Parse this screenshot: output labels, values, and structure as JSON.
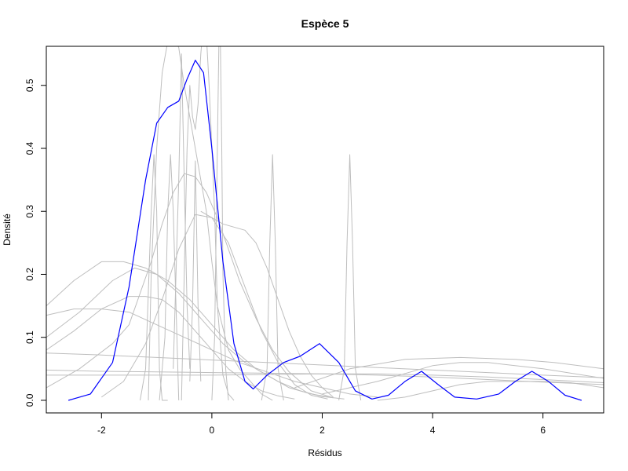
{
  "chart_data": {
    "type": "line",
    "title": "Espèce 5",
    "xlabel": "Résidus",
    "ylabel": "Densité",
    "xlim": [
      -3.0,
      7.1
    ],
    "ylim": [
      -0.02,
      0.562
    ],
    "x_ticks": [
      -2,
      0,
      2,
      4,
      6
    ],
    "x_tick_labels": [
      "-2",
      "0",
      "2",
      "4",
      "6"
    ],
    "y_ticks": [
      0.0,
      0.1,
      0.2,
      0.3,
      0.4,
      0.5
    ],
    "y_tick_labels": [
      "0.0",
      "0.1",
      "0.2",
      "0.3",
      "0.4",
      "0.5"
    ],
    "grid": false,
    "legend": "none",
    "colors": {
      "highlight": "#0000ff",
      "background_series": "#bebebe",
      "axis": "#000000"
    },
    "series": [
      {
        "role": "highlight",
        "x": [
          -2.6,
          -2.2,
          -1.8,
          -1.5,
          -1.2,
          -1.0,
          -0.8,
          -0.6,
          -0.45,
          -0.3,
          -0.15,
          0.0,
          0.2,
          0.4,
          0.6,
          0.75,
          1.0,
          1.3,
          1.6,
          1.95,
          2.3,
          2.6,
          2.9,
          3.2,
          3.5,
          3.8,
          4.1,
          4.4,
          4.8,
          5.2,
          5.5,
          5.8,
          6.1,
          6.4,
          6.7
        ],
        "y": [
          0.0,
          0.01,
          0.06,
          0.18,
          0.35,
          0.44,
          0.465,
          0.475,
          0.51,
          0.54,
          0.52,
          0.4,
          0.22,
          0.09,
          0.03,
          0.018,
          0.04,
          0.06,
          0.07,
          0.09,
          0.06,
          0.015,
          0.002,
          0.008,
          0.03,
          0.046,
          0.025,
          0.005,
          0.002,
          0.01,
          0.03,
          0.046,
          0.03,
          0.008,
          0.0
        ]
      },
      {
        "role": "background",
        "x": [
          -3.0,
          -2.5,
          -2.0,
          -1.6,
          -1.2,
          -0.8,
          -0.4,
          0.0,
          0.4,
          0.8,
          1.2,
          1.6,
          2.0,
          2.4
        ],
        "y": [
          0.15,
          0.19,
          0.22,
          0.22,
          0.21,
          0.19,
          0.16,
          0.12,
          0.08,
          0.05,
          0.03,
          0.015,
          0.006,
          0.002
        ]
      },
      {
        "role": "background",
        "x": [
          -3.0,
          -2.4,
          -1.8,
          -1.4,
          -1.0,
          -0.6,
          -0.2,
          0.2,
          0.6,
          1.0,
          1.4,
          1.8,
          2.2
        ],
        "y": [
          0.1,
          0.14,
          0.19,
          0.21,
          0.2,
          0.17,
          0.13,
          0.09,
          0.06,
          0.04,
          0.02,
          0.01,
          0.004
        ]
      },
      {
        "role": "background",
        "x": [
          -3.0,
          -2.5,
          -2.0,
          -1.5,
          -1.0,
          -0.5,
          0.0,
          0.5,
          1.0,
          1.5,
          2.0,
          2.5,
          3.0
        ],
        "y": [
          0.135,
          0.145,
          0.145,
          0.14,
          0.12,
          0.1,
          0.08,
          0.06,
          0.045,
          0.03,
          0.02,
          0.01,
          0.005
        ]
      },
      {
        "role": "background",
        "x": [
          -3.0,
          -2.5,
          -2.0,
          -1.5,
          -1.2,
          -0.9,
          -0.6,
          -0.3,
          0.0,
          0.3,
          0.6,
          0.9,
          1.2,
          1.5
        ],
        "y": [
          0.08,
          0.11,
          0.145,
          0.165,
          0.165,
          0.16,
          0.14,
          0.11,
          0.08,
          0.05,
          0.03,
          0.015,
          0.007,
          0.002
        ]
      },
      {
        "role": "background",
        "x": [
          -3.0,
          -2.4,
          -1.8,
          -1.5,
          -1.3,
          -1.1,
          -0.9,
          -0.7,
          -0.5,
          -0.3,
          -0.1,
          0.1,
          0.3,
          0.5,
          0.8,
          1.1,
          1.4,
          1.8,
          2.2
        ],
        "y": [
          0.02,
          0.05,
          0.09,
          0.12,
          0.17,
          0.22,
          0.28,
          0.33,
          0.36,
          0.355,
          0.33,
          0.29,
          0.24,
          0.19,
          0.13,
          0.08,
          0.045,
          0.015,
          0.004
        ]
      },
      {
        "role": "background",
        "x": [
          -2.0,
          -1.6,
          -1.2,
          -0.9,
          -0.6,
          -0.3,
          0.0,
          0.3,
          0.6,
          0.9,
          1.2,
          1.5,
          1.8,
          2.1
        ],
        "y": [
          0.005,
          0.03,
          0.09,
          0.16,
          0.24,
          0.295,
          0.29,
          0.25,
          0.18,
          0.11,
          0.06,
          0.025,
          0.008,
          0.002
        ]
      },
      {
        "role": "background",
        "x": [
          -1.15,
          -1.1,
          -1.0,
          -0.9,
          -0.8,
          -0.7,
          -0.6,
          -0.5,
          -0.4,
          -0.3,
          -0.2,
          -0.1,
          0.0,
          0.1,
          0.3,
          0.5,
          0.7,
          0.9,
          1.1
        ],
        "y": [
          0.0,
          0.2,
          0.4,
          0.52,
          0.57,
          0.58,
          0.56,
          0.5,
          0.45,
          0.4,
          0.35,
          0.3,
          0.22,
          0.15,
          0.08,
          0.05,
          0.03,
          0.01,
          0.0
        ]
      },
      {
        "role": "background",
        "x": [
          -0.55,
          -0.5,
          -0.45,
          -0.4,
          -0.35,
          -0.3,
          -0.25,
          -0.2,
          -0.15,
          -0.1,
          -0.05,
          0.0,
          0.05,
          0.1,
          0.2,
          0.3,
          0.4
        ],
        "y": [
          0.0,
          0.2,
          0.4,
          0.5,
          0.45,
          0.43,
          0.47,
          0.55,
          0.6,
          0.58,
          0.5,
          0.4,
          0.3,
          0.15,
          0.04,
          0.01,
          0.0
        ]
      },
      {
        "role": "background",
        "x": [
          0.0,
          0.05,
          0.1,
          0.13,
          0.15,
          0.18,
          0.2,
          0.25,
          0.3
        ],
        "y": [
          0.0,
          0.1,
          0.4,
          0.58,
          0.6,
          0.4,
          0.2,
          0.05,
          0.0
        ]
      },
      {
        "role": "background",
        "x": [
          -0.2,
          0.0,
          0.2,
          0.4,
          0.6,
          0.8,
          1.0,
          1.2,
          1.4,
          1.6,
          1.8,
          2.0,
          2.2
        ],
        "y": [
          0.3,
          0.29,
          0.28,
          0.275,
          0.27,
          0.25,
          0.21,
          0.16,
          0.11,
          0.07,
          0.04,
          0.02,
          0.005
        ]
      },
      {
        "role": "background",
        "x": [
          -1.3,
          -1.2,
          -1.1,
          -1.05,
          -1.0,
          -0.95,
          -0.9,
          -0.8
        ],
        "y": [
          0.0,
          0.05,
          0.3,
          0.39,
          0.3,
          0.05,
          0.0,
          0.0
        ]
      },
      {
        "role": "background",
        "x": [
          -0.95,
          -0.85,
          -0.8,
          -0.75,
          -0.7,
          -0.6
        ],
        "y": [
          0.0,
          0.1,
          0.3,
          0.39,
          0.3,
          0.0
        ]
      },
      {
        "role": "background",
        "x": [
          -0.7,
          -0.65,
          -0.6,
          -0.55,
          -0.5,
          -0.45,
          -0.4
        ],
        "y": [
          0.05,
          0.2,
          0.35,
          0.55,
          0.35,
          0.15,
          0.05
        ]
      },
      {
        "role": "background",
        "x": [
          -0.4,
          -0.35,
          -0.3,
          -0.25,
          -0.2
        ],
        "y": [
          0.03,
          0.15,
          0.38,
          0.15,
          0.03
        ]
      },
      {
        "role": "background",
        "x": [
          0.9,
          1.0,
          1.05,
          1.1,
          1.15,
          1.2,
          1.3
        ],
        "y": [
          0.0,
          0.05,
          0.25,
          0.39,
          0.25,
          0.05,
          0.0
        ]
      },
      {
        "role": "background",
        "x": [
          2.3,
          2.4,
          2.45,
          2.5,
          2.55,
          2.6,
          2.7
        ],
        "y": [
          0.0,
          0.05,
          0.25,
          0.39,
          0.25,
          0.05,
          0.0
        ]
      },
      {
        "role": "background",
        "x": [
          -3.0,
          -2.0,
          -1.0,
          0.0,
          1.0,
          2.0,
          3.0,
          4.0,
          5.0,
          6.0,
          7.1
        ],
        "y": [
          0.075,
          0.072,
          0.068,
          0.064,
          0.06,
          0.056,
          0.052,
          0.048,
          0.044,
          0.04,
          0.036
        ]
      },
      {
        "role": "background",
        "x": [
          -3.0,
          -2.0,
          -1.0,
          0.0,
          1.0,
          2.0,
          3.0,
          4.0,
          5.0,
          6.0,
          7.1
        ],
        "y": [
          0.048,
          0.046,
          0.045,
          0.044,
          0.043,
          0.042,
          0.04,
          0.037,
          0.033,
          0.029,
          0.025
        ]
      },
      {
        "role": "background",
        "x": [
          -3.0,
          -2.0,
          -1.0,
          0.0,
          1.0,
          2.0,
          3.0,
          4.0,
          5.0,
          6.0,
          7.1
        ],
        "y": [
          0.04,
          0.04,
          0.04,
          0.04,
          0.041,
          0.042,
          0.042,
          0.04,
          0.037,
          0.033,
          0.028
        ]
      },
      {
        "role": "background",
        "x": [
          1.5,
          2.5,
          3.5,
          4.5,
          5.5,
          6.2,
          7.1
        ],
        "y": [
          0.02,
          0.05,
          0.065,
          0.068,
          0.065,
          0.06,
          0.05
        ]
      },
      {
        "role": "background",
        "x": [
          2.0,
          3.0,
          4.0,
          4.5,
          5.0,
          6.0,
          7.1
        ],
        "y": [
          0.01,
          0.03,
          0.055,
          0.06,
          0.06,
          0.05,
          0.035
        ]
      },
      {
        "role": "background",
        "x": [
          3.0,
          3.5,
          4.0,
          4.5,
          5.0,
          5.5,
          6.0,
          6.5,
          7.1
        ],
        "y": [
          0.0,
          0.005,
          0.015,
          0.025,
          0.03,
          0.03,
          0.03,
          0.028,
          0.02
        ]
      }
    ]
  }
}
